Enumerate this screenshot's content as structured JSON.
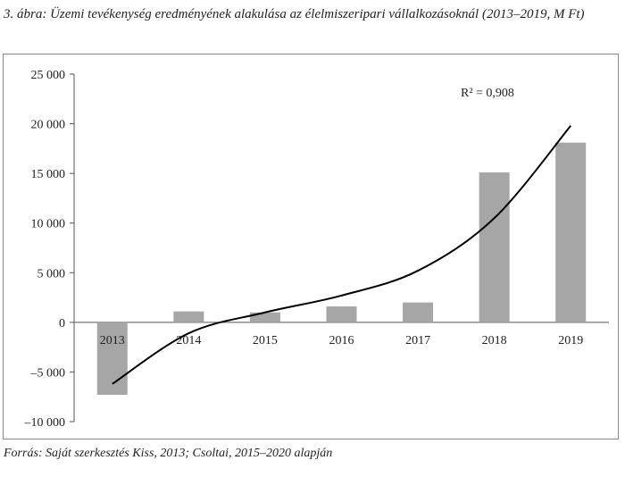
{
  "figure": {
    "caption": "3. ábra: Üzemi tevékenység eredményének alakulása az élelmiszeripari vállalkozásoknál (2013–2019, M Ft)",
    "source": "Forrás: Saját szerkesztés Kiss, 2013; Csoltai, 2015–2020 alapján"
  },
  "chart_data": {
    "type": "bar",
    "categories": [
      "2013",
      "2014",
      "2015",
      "2016",
      "2017",
      "2018",
      "2019"
    ],
    "values": [
      -7300,
      1100,
      1000,
      1600,
      2000,
      15100,
      18100
    ],
    "ylim": [
      -10000,
      25000
    ],
    "yticks": [
      {
        "value": 25000,
        "label": "25 000"
      },
      {
        "value": 20000,
        "label": "20 000"
      },
      {
        "value": 15000,
        "label": "15 000"
      },
      {
        "value": 10000,
        "label": "10 000"
      },
      {
        "value": 5000,
        "label": "5 000"
      },
      {
        "value": 0,
        "label": "0"
      },
      {
        "value": -5000,
        "label": "–5 000"
      },
      {
        "value": -10000,
        "label": "–10 000"
      }
    ],
    "trendline": {
      "type": "polynomial",
      "x": [
        2013,
        2014,
        2015,
        2016,
        2017,
        2018,
        2019
      ],
      "y": [
        -6200,
        -1100,
        1000,
        2700,
        5200,
        10500,
        19800
      ]
    },
    "annotation": "R² = 0,908",
    "bar_color": "#a6a6a6",
    "line_color": "#000000",
    "grid": false
  }
}
